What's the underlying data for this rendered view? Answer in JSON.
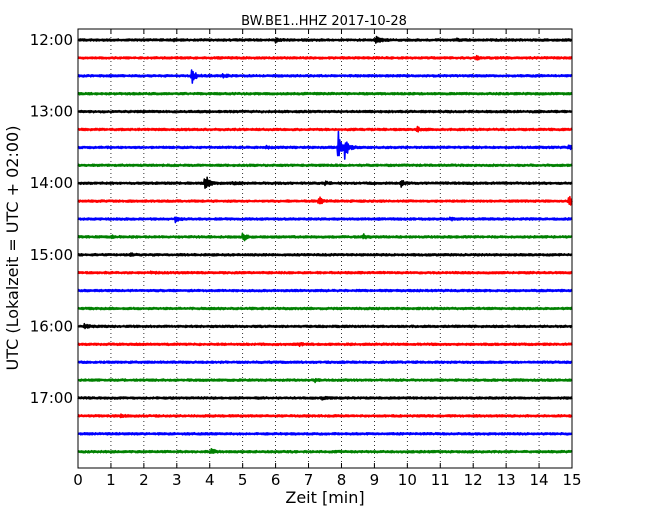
{
  "chart_data": {
    "type": "line",
    "subtype": "helicorder",
    "title": "BW.BE1..HHZ 2017-10-28",
    "xlabel": "Zeit  [min]",
    "ylabel": "UTC (Lokalzeit = UTC + 02:00)",
    "xlim": [
      0,
      15
    ],
    "xticks": [
      0,
      1,
      2,
      3,
      4,
      5,
      6,
      7,
      8,
      9,
      10,
      11,
      12,
      13,
      14,
      15
    ],
    "grid": "vertical dotted",
    "line_colors": [
      "#000000",
      "#ff0000",
      "#0000ff",
      "#008000"
    ],
    "row_interval_min": 15,
    "start_time": "12:00",
    "hour_labels": [
      {
        "label": "12:00",
        "row": 0
      },
      {
        "label": "13:00",
        "row": 4
      },
      {
        "label": "14:00",
        "row": 8
      },
      {
        "label": "15:00",
        "row": 12
      },
      {
        "label": "16:00",
        "row": 16
      },
      {
        "label": "17:00",
        "row": 20
      }
    ],
    "rows": [
      {
        "time": "12:00",
        "color": "#000000",
        "events": [
          {
            "t": 9.05,
            "amp": 0.55
          },
          {
            "t": 6.0,
            "amp": 0.25
          },
          {
            "t": 2.9,
            "amp": 0.12
          },
          {
            "t": 11.5,
            "amp": 0.12
          }
        ]
      },
      {
        "time": "12:15",
        "color": "#ff0000",
        "events": [
          {
            "t": 12.1,
            "amp": 0.3
          }
        ]
      },
      {
        "time": "12:30",
        "color": "#0000ff",
        "events": [
          {
            "t": 3.45,
            "amp": 0.95
          },
          {
            "t": 4.4,
            "amp": 0.2
          }
        ]
      },
      {
        "time": "12:45",
        "color": "#008000",
        "events": []
      },
      {
        "time": "13:00",
        "color": "#000000",
        "events": []
      },
      {
        "time": "13:15",
        "color": "#ff0000",
        "events": [
          {
            "t": 10.3,
            "amp": 0.25
          }
        ]
      },
      {
        "time": "13:30",
        "color": "#0000ff",
        "events": [
          {
            "t": 7.9,
            "amp": 1.8
          },
          {
            "t": 8.1,
            "amp": 1.2
          },
          {
            "t": 14.9,
            "amp": 0.2
          },
          {
            "t": 5.7,
            "amp": 0.15
          }
        ]
      },
      {
        "time": "13:45",
        "color": "#008000",
        "events": []
      },
      {
        "time": "14:00",
        "color": "#000000",
        "events": [
          {
            "t": 3.85,
            "amp": 1.3
          },
          {
            "t": 9.8,
            "amp": 0.4
          },
          {
            "t": 4.7,
            "amp": 0.15
          },
          {
            "t": 7.5,
            "amp": 0.15
          }
        ]
      },
      {
        "time": "14:15",
        "color": "#ff0000",
        "events": [
          {
            "t": 7.3,
            "amp": 0.6
          },
          {
            "t": 14.9,
            "amp": 0.6
          }
        ]
      },
      {
        "time": "14:30",
        "color": "#0000ff",
        "events": [
          {
            "t": 2.95,
            "amp": 0.3
          },
          {
            "t": 11.3,
            "amp": 0.15
          }
        ]
      },
      {
        "time": "14:45",
        "color": "#008000",
        "events": [
          {
            "t": 5.0,
            "amp": 0.55
          },
          {
            "t": 8.65,
            "amp": 0.3
          },
          {
            "t": 1.0,
            "amp": 0.15
          }
        ]
      },
      {
        "time": "15:00",
        "color": "#000000",
        "events": [
          {
            "t": 1.6,
            "amp": 0.15
          }
        ]
      },
      {
        "time": "15:15",
        "color": "#ff0000",
        "events": [
          {
            "t": 2.2,
            "amp": 0.12
          }
        ]
      },
      {
        "time": "15:30",
        "color": "#0000ff",
        "events": []
      },
      {
        "time": "15:45",
        "color": "#008000",
        "events": []
      },
      {
        "time": "16:00",
        "color": "#000000",
        "events": [
          {
            "t": 0.2,
            "amp": 0.35
          }
        ]
      },
      {
        "time": "16:15",
        "color": "#ff0000",
        "events": [
          {
            "t": 6.7,
            "amp": 0.15
          }
        ]
      },
      {
        "time": "16:30",
        "color": "#0000ff",
        "events": []
      },
      {
        "time": "16:45",
        "color": "#008000",
        "events": [
          {
            "t": 7.2,
            "amp": 0.15
          }
        ]
      },
      {
        "time": "17:00",
        "color": "#000000",
        "events": [
          {
            "t": 7.4,
            "amp": 0.15
          }
        ]
      },
      {
        "time": "17:15",
        "color": "#ff0000",
        "events": [
          {
            "t": 1.3,
            "amp": 0.12
          }
        ]
      },
      {
        "time": "17:30",
        "color": "#0000ff",
        "events": []
      },
      {
        "time": "17:45",
        "color": "#008000",
        "events": [
          {
            "t": 4.05,
            "amp": 0.3
          }
        ]
      }
    ]
  }
}
